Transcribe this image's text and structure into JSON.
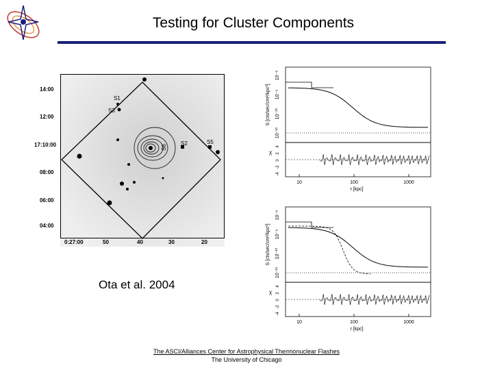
{
  "slide": {
    "title": "Testing for Cluster Components",
    "citation": "Ota et al. 2004",
    "footer_line1": "The ASCI/Alliances Center for Astrophysical Thermonuclear Flashes",
    "footer_line2": "The University of Chicago",
    "accent_color": "#1a1f7a"
  },
  "image_panel": {
    "y_ticks": [
      "14:00",
      "12:00",
      "17:10:00",
      "08:00",
      "06:00",
      "04:00"
    ],
    "x_ticks": [
      "0:27:00",
      "50",
      "40",
      "30",
      "20"
    ],
    "source_labels": [
      "S1",
      "S3",
      "S2",
      "S5",
      "S6"
    ]
  },
  "profiles": [
    {
      "ylabel": "S [cts/sec/cm²/kpc²]",
      "y_ticks": [
        "10⁻¹¹",
        "10⁻¹⁰",
        "10⁻⁹",
        "10⁻⁸"
      ],
      "resid_label": "χ",
      "resid_ticks": [
        "-4",
        "-2",
        "0",
        "2",
        "4"
      ],
      "x_ticks": [
        "10",
        "100",
        "1000"
      ],
      "xlabel": "r [kpc]"
    },
    {
      "ylabel": "S [cts/sec/cm²/kpc²]",
      "y_ticks": [
        "10⁻¹¹",
        "10⁻¹⁰",
        "10⁻⁹",
        "10⁻⁸"
      ],
      "resid_label": "χ",
      "resid_ticks": [
        "-4",
        "-2",
        "0",
        "2",
        "4"
      ],
      "x_ticks": [
        "10",
        "100",
        "1000"
      ],
      "xlabel": "r [kpc]"
    }
  ]
}
